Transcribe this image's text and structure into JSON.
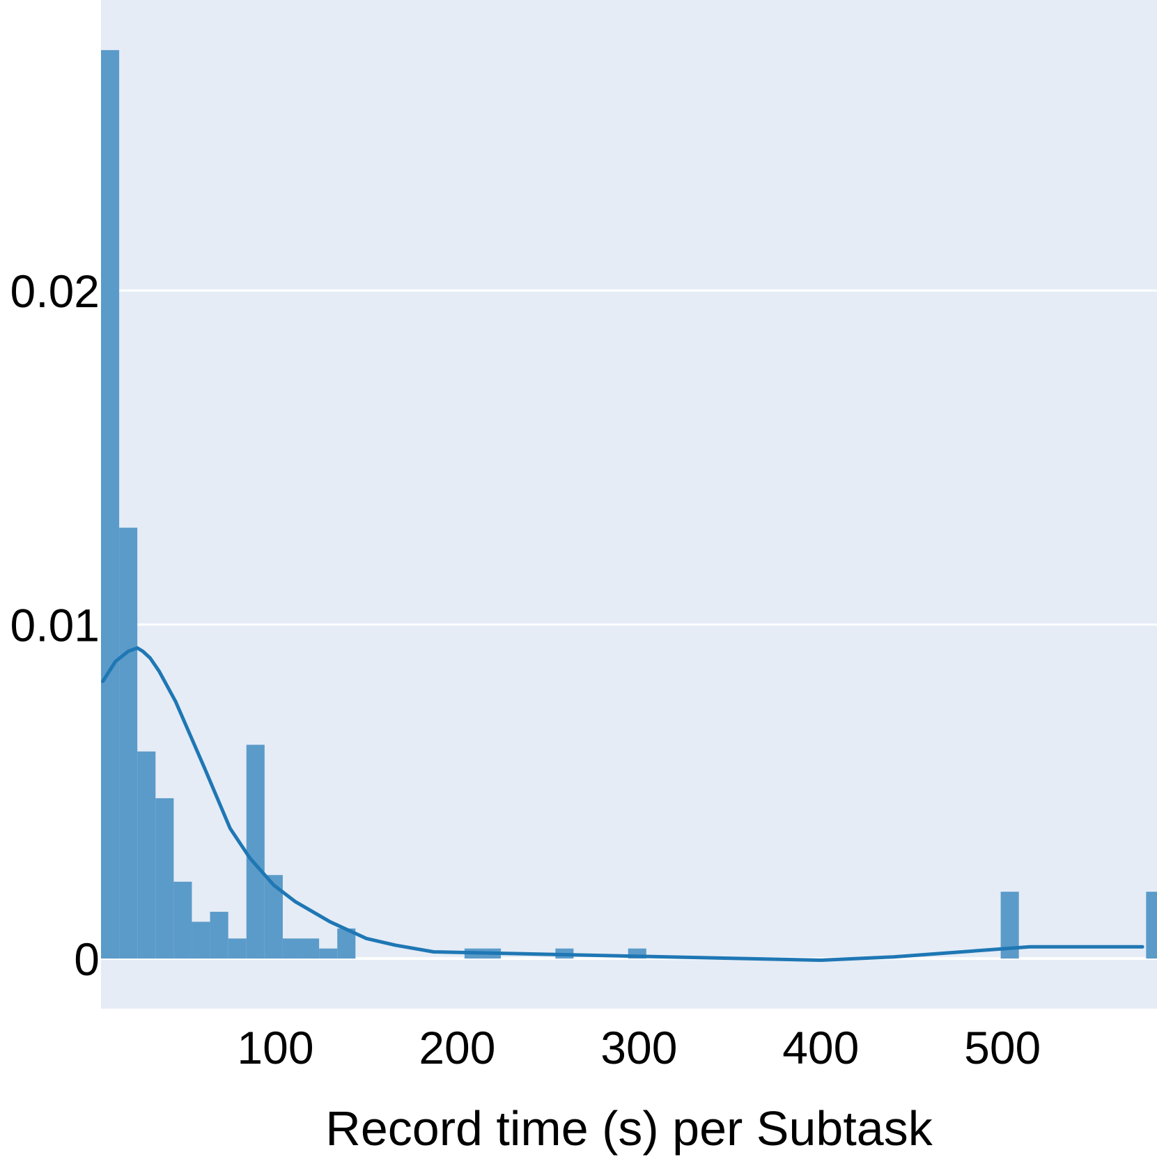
{
  "chart_data": {
    "type": "bar",
    "title": "",
    "xlabel": "Record time (s) per Subtask",
    "ylabel": "",
    "xlim": [
      4,
      585
    ],
    "ylim": [
      -0.0015,
      0.0287
    ],
    "x_ticks": [
      100,
      200,
      300,
      400,
      500
    ],
    "y_ticks": [
      0,
      0.01,
      0.02
    ],
    "x_tick_labels": [
      "100",
      "200",
      "300",
      "400",
      "500"
    ],
    "y_tick_labels": [
      "0",
      "0.01",
      "0.02"
    ],
    "grid": "horizontal",
    "plot_background": "#E5ECF6",
    "bar_color": "#5B9BC9",
    "line_color": "#1F77B4",
    "histogram": {
      "bin_width": 10,
      "bins": [
        {
          "x0": 4,
          "x1": 14,
          "density": 0.0272
        },
        {
          "x0": 14,
          "x1": 24,
          "density": 0.0129
        },
        {
          "x0": 24,
          "x1": 34,
          "density": 0.0062
        },
        {
          "x0": 34,
          "x1": 44,
          "density": 0.0048
        },
        {
          "x0": 44,
          "x1": 54,
          "density": 0.0023
        },
        {
          "x0": 54,
          "x1": 64,
          "density": 0.0011
        },
        {
          "x0": 64,
          "x1": 74,
          "density": 0.0014
        },
        {
          "x0": 74,
          "x1": 84,
          "density": 0.0006
        },
        {
          "x0": 84,
          "x1": 94,
          "density": 0.0064
        },
        {
          "x0": 94,
          "x1": 104,
          "density": 0.0025
        },
        {
          "x0": 104,
          "x1": 114,
          "density": 0.0006
        },
        {
          "x0": 114,
          "x1": 124,
          "density": 0.0006
        },
        {
          "x0": 124,
          "x1": 134,
          "density": 0.0003
        },
        {
          "x0": 134,
          "x1": 144,
          "density": 0.0009
        },
        {
          "x0": 204,
          "x1": 214,
          "density": 0.0003
        },
        {
          "x0": 214,
          "x1": 224,
          "density": 0.0003
        },
        {
          "x0": 254,
          "x1": 264,
          "density": 0.0003
        },
        {
          "x0": 294,
          "x1": 304,
          "density": 0.0003
        },
        {
          "x0": 499,
          "x1": 509,
          "density": 0.002
        },
        {
          "x0": 579,
          "x1": 589,
          "density": 0.002
        }
      ]
    },
    "kde_line": {
      "x": [
        5,
        12,
        19,
        24,
        27,
        31,
        36,
        45,
        61,
        75,
        86,
        99,
        111,
        130,
        150,
        166,
        187,
        400,
        440,
        515,
        568,
        577
      ],
      "y": [
        0.0083,
        0.0089,
        0.0092,
        0.0093,
        0.0092,
        0.009,
        0.0086,
        0.0077,
        0.0057,
        0.0039,
        0.003,
        0.0022,
        0.0017,
        0.0011,
        0.0006,
        0.0004,
        0.0002,
        -5e-05,
        5e-05,
        0.00035,
        0.00035,
        0.00035
      ]
    }
  }
}
